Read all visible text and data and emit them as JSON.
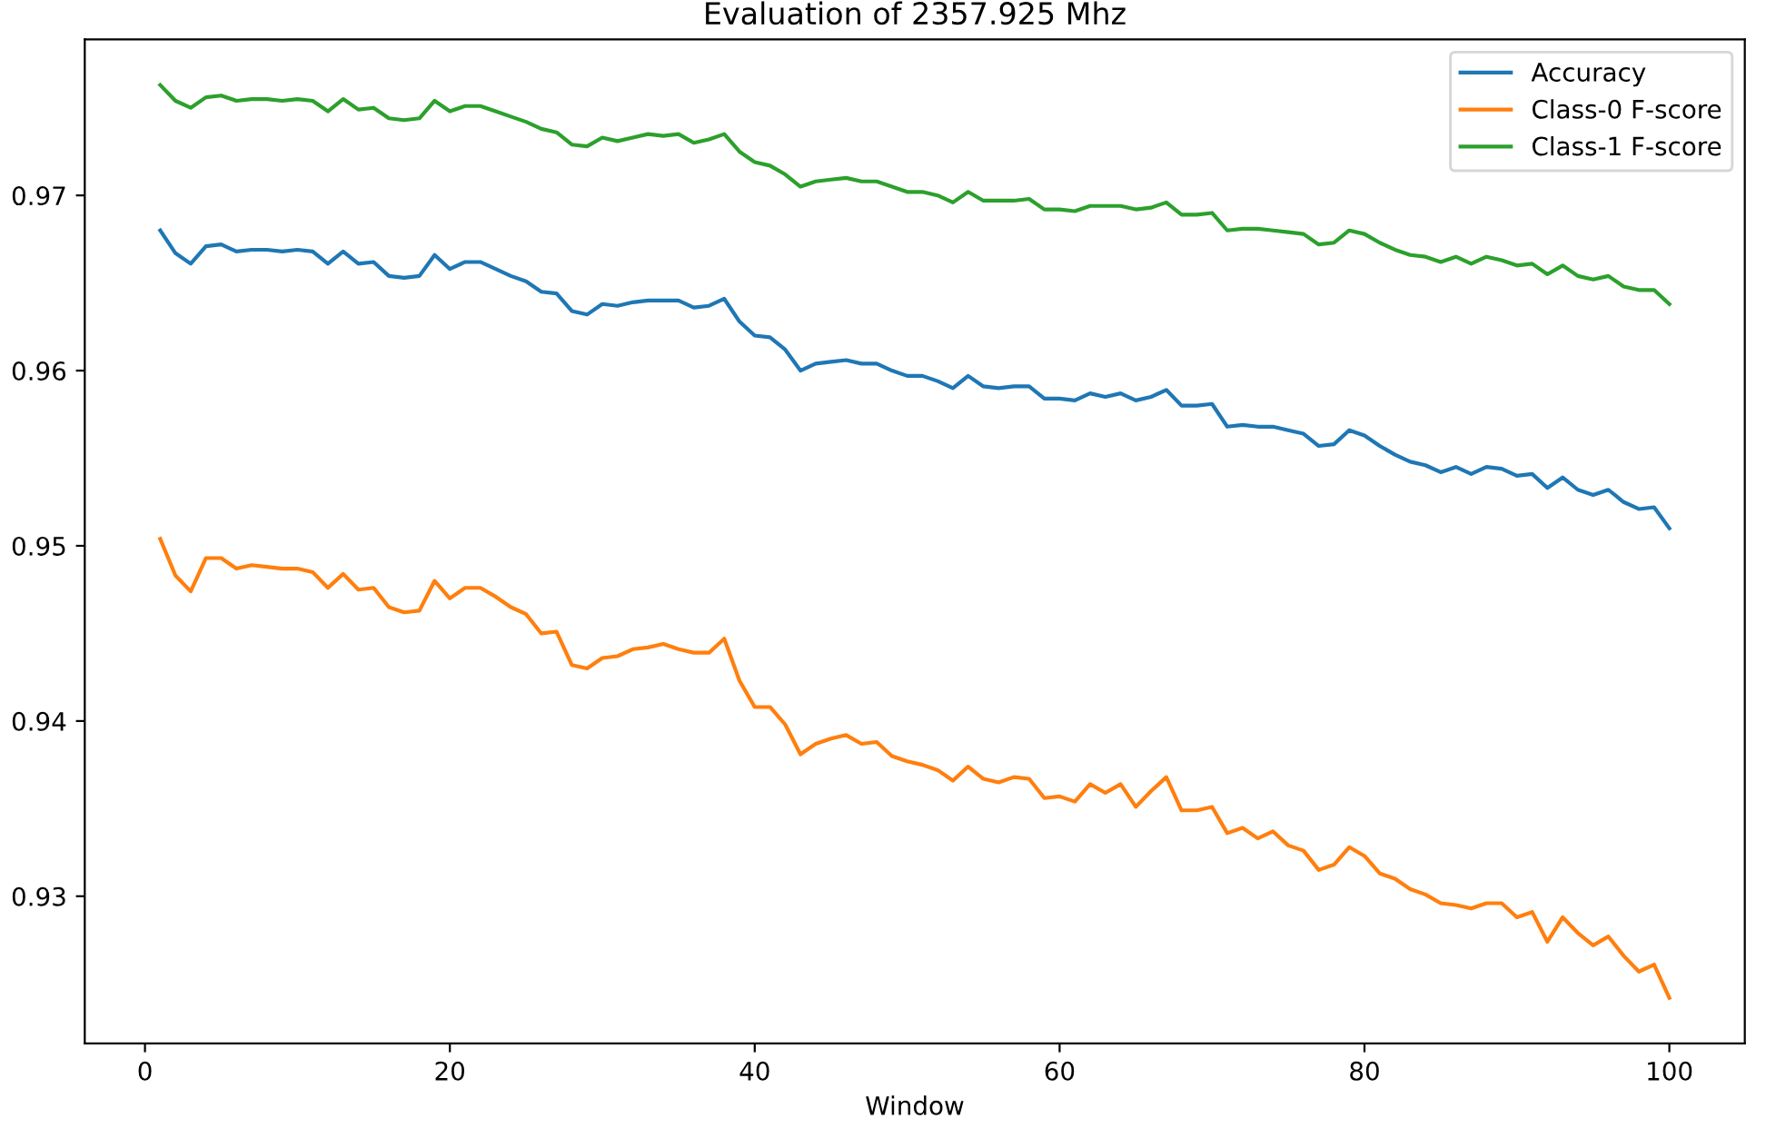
{
  "chart_data": {
    "type": "line",
    "title": "Evaluation of 2357.925 Mhz",
    "xlabel": "Window",
    "x": [
      1,
      2,
      3,
      4,
      5,
      6,
      7,
      8,
      9,
      10,
      11,
      12,
      13,
      14,
      15,
      16,
      17,
      18,
      19,
      20,
      21,
      22,
      23,
      24,
      25,
      26,
      27,
      28,
      29,
      30,
      31,
      32,
      33,
      34,
      35,
      36,
      37,
      38,
      39,
      40,
      41,
      42,
      43,
      44,
      45,
      46,
      47,
      48,
      49,
      50,
      51,
      52,
      53,
      54,
      55,
      56,
      57,
      58,
      59,
      60,
      61,
      62,
      63,
      64,
      65,
      66,
      67,
      68,
      69,
      70,
      71,
      72,
      73,
      74,
      75,
      76,
      77,
      78,
      79,
      80,
      81,
      82,
      83,
      84,
      85,
      86,
      87,
      88,
      89,
      90,
      91,
      92,
      93,
      94,
      95,
      96,
      97,
      98,
      99,
      100
    ],
    "series": [
      {
        "name": "Accuracy",
        "color": "#1f77b4",
        "values": [
          0.968,
          0.9667,
          0.9661,
          0.9671,
          0.9672,
          0.9668,
          0.9669,
          0.9669,
          0.9668,
          0.9669,
          0.9668,
          0.9661,
          0.9668,
          0.9661,
          0.9662,
          0.9654,
          0.9653,
          0.9654,
          0.9666,
          0.9658,
          0.9662,
          0.9662,
          0.9658,
          0.9654,
          0.9651,
          0.9645,
          0.9644,
          0.9634,
          0.9632,
          0.9638,
          0.9637,
          0.9639,
          0.964,
          0.964,
          0.964,
          0.9636,
          0.9637,
          0.9641,
          0.9628,
          0.962,
          0.9619,
          0.9612,
          0.96,
          0.9604,
          0.9605,
          0.9606,
          0.9604,
          0.9604,
          0.96,
          0.9597,
          0.9597,
          0.9594,
          0.959,
          0.9597,
          0.9591,
          0.959,
          0.9591,
          0.9591,
          0.9584,
          0.9584,
          0.9583,
          0.9587,
          0.9585,
          0.9587,
          0.9583,
          0.9585,
          0.9589,
          0.958,
          0.958,
          0.9581,
          0.9568,
          0.9569,
          0.9568,
          0.9568,
          0.9566,
          0.9564,
          0.9557,
          0.9558,
          0.9566,
          0.9563,
          0.9557,
          0.9552,
          0.9548,
          0.9546,
          0.9542,
          0.9545,
          0.9541,
          0.9545,
          0.9544,
          0.954,
          0.9541,
          0.9533,
          0.9539,
          0.9532,
          0.9529,
          0.9532,
          0.9525,
          0.9521,
          0.9522,
          0.951
        ]
      },
      {
        "name": "Class-0 F-score",
        "color": "#ff7f0e",
        "values": [
          0.9504,
          0.9483,
          0.9474,
          0.9493,
          0.9493,
          0.9487,
          0.9489,
          0.9488,
          0.9487,
          0.9487,
          0.9485,
          0.9476,
          0.9484,
          0.9475,
          0.9476,
          0.9465,
          0.9462,
          0.9463,
          0.948,
          0.947,
          0.9476,
          0.9476,
          0.9471,
          0.9465,
          0.9461,
          0.945,
          0.9451,
          0.9432,
          0.943,
          0.9436,
          0.9437,
          0.9441,
          0.9442,
          0.9444,
          0.9441,
          0.9439,
          0.9439,
          0.9447,
          0.9423,
          0.9408,
          0.9408,
          0.9398,
          0.9381,
          0.9387,
          0.939,
          0.9392,
          0.9387,
          0.9388,
          0.938,
          0.9377,
          0.9375,
          0.9372,
          0.9366,
          0.9374,
          0.9367,
          0.9365,
          0.9368,
          0.9367,
          0.9356,
          0.9357,
          0.9354,
          0.9364,
          0.9359,
          0.9364,
          0.9351,
          0.936,
          0.9368,
          0.9349,
          0.9349,
          0.9351,
          0.9336,
          0.9339,
          0.9333,
          0.9337,
          0.9329,
          0.9326,
          0.9315,
          0.9318,
          0.9328,
          0.9323,
          0.9313,
          0.931,
          0.9304,
          0.9301,
          0.9296,
          0.9295,
          0.9293,
          0.9296,
          0.9296,
          0.9288,
          0.9291,
          0.9274,
          0.9288,
          0.9279,
          0.9272,
          0.9277,
          0.9266,
          0.9257,
          0.9261,
          0.9242
        ]
      },
      {
        "name": "Class-1 F-score",
        "color": "#2ca02c",
        "values": [
          0.9763,
          0.9754,
          0.975,
          0.9756,
          0.9757,
          0.9754,
          0.9755,
          0.9755,
          0.9754,
          0.9755,
          0.9754,
          0.9748,
          0.9755,
          0.9749,
          0.975,
          0.9744,
          0.9743,
          0.9744,
          0.9754,
          0.9748,
          0.9751,
          0.9751,
          0.9748,
          0.9745,
          0.9742,
          0.9738,
          0.9736,
          0.9729,
          0.9728,
          0.9733,
          0.9731,
          0.9733,
          0.9735,
          0.9734,
          0.9735,
          0.973,
          0.9732,
          0.9735,
          0.9725,
          0.9719,
          0.9717,
          0.9712,
          0.9705,
          0.9708,
          0.9709,
          0.971,
          0.9708,
          0.9708,
          0.9705,
          0.9702,
          0.9702,
          0.97,
          0.9696,
          0.9702,
          0.9697,
          0.9697,
          0.9697,
          0.9698,
          0.9692,
          0.9692,
          0.9691,
          0.9694,
          0.9694,
          0.9694,
          0.9692,
          0.9693,
          0.9696,
          0.9689,
          0.9689,
          0.969,
          0.968,
          0.9681,
          0.9681,
          0.968,
          0.9679,
          0.9678,
          0.9672,
          0.9673,
          0.968,
          0.9678,
          0.9673,
          0.9669,
          0.9666,
          0.9665,
          0.9662,
          0.9665,
          0.9661,
          0.9665,
          0.9663,
          0.966,
          0.9661,
          0.9655,
          0.966,
          0.9654,
          0.9652,
          0.9654,
          0.9648,
          0.9646,
          0.9646,
          0.9638
        ]
      }
    ],
    "xlim": [
      -3.95,
      104.95
    ],
    "ylim": [
      0.9216,
      0.9789
    ],
    "xticks": [
      0,
      20,
      40,
      60,
      80,
      100
    ],
    "yticks": [
      0.93,
      0.94,
      0.95,
      0.96,
      0.97
    ],
    "legend": "top right",
    "grid": false,
    "marker": "none",
    "line_style": "solid"
  }
}
